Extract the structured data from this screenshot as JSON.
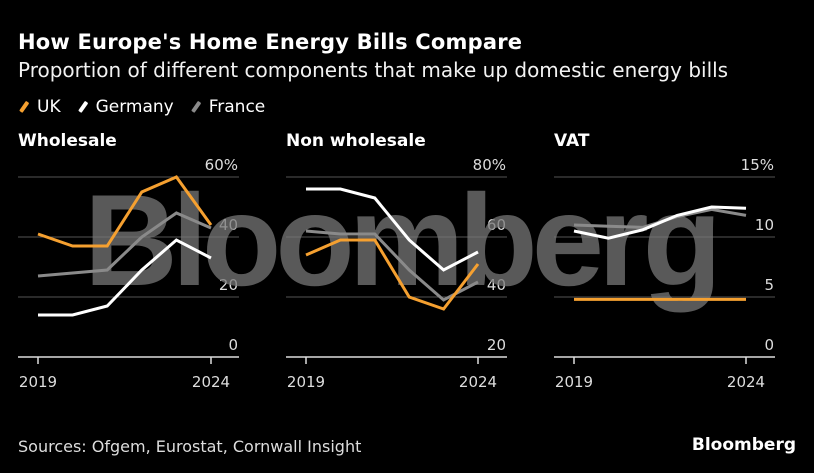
{
  "header": {
    "title": "How Europe's Home Energy Bills Compare",
    "subtitle": "Proportion of different components that make up domestic energy bills"
  },
  "legend": [
    {
      "name": "UK",
      "color": "#f5a030"
    },
    {
      "name": "Germany",
      "color": "#ffffff"
    },
    {
      "name": "France",
      "color": "#8a8a8a"
    }
  ],
  "footer": {
    "source": "Sources: Ofgem, Eurostat, Cornwall Insight",
    "brand": "Bloomberg"
  },
  "watermark": "Bloomberg",
  "chart_data": [
    {
      "type": "line",
      "title": "Wholesale",
      "x": [
        2019,
        2020,
        2021,
        2022,
        2023,
        2024
      ],
      "xtick_labels": [
        "2019",
        "2024"
      ],
      "ylim": [
        0,
        60
      ],
      "yticks": [
        0,
        20,
        40,
        60
      ],
      "ytick_labels": [
        "0",
        "20",
        "40",
        "60%"
      ],
      "grid": true,
      "series": [
        {
          "name": "UK",
          "values": [
            41,
            37,
            37,
            55,
            60,
            44
          ]
        },
        {
          "name": "Germany",
          "values": [
            14,
            14,
            17,
            29,
            39,
            33
          ]
        },
        {
          "name": "France",
          "values": [
            27,
            28,
            29,
            40,
            48,
            43
          ]
        }
      ]
    },
    {
      "type": "line",
      "title": "Non wholesale",
      "x": [
        2019,
        2020,
        2021,
        2022,
        2023,
        2024
      ],
      "xtick_labels": [
        "2019",
        "2024"
      ],
      "ylim": [
        20,
        80
      ],
      "yticks": [
        20,
        40,
        60,
        80
      ],
      "ytick_labels": [
        "20",
        "40",
        "60",
        "80%"
      ],
      "grid": true,
      "series": [
        {
          "name": "UK",
          "values": [
            54,
            59,
            59,
            40,
            36,
            51
          ]
        },
        {
          "name": "Germany",
          "values": [
            76,
            76,
            73,
            59,
            49,
            55
          ]
        },
        {
          "name": "France",
          "values": [
            62,
            61,
            61,
            49,
            39,
            45
          ]
        }
      ]
    },
    {
      "type": "line",
      "title": "VAT",
      "x": [
        2019,
        2020,
        2021,
        2022,
        2023,
        2024
      ],
      "xtick_labels": [
        "2019",
        "2024"
      ],
      "ylim": [
        0,
        15
      ],
      "yticks": [
        0,
        5,
        10,
        15
      ],
      "ytick_labels": [
        "0",
        "5",
        "10",
        "15%"
      ],
      "grid": true,
      "series": [
        {
          "name": "UK",
          "values": [
            4.8,
            4.8,
            4.8,
            4.8,
            4.8,
            4.8
          ]
        },
        {
          "name": "Germany",
          "values": [
            10.5,
            9.9,
            10.6,
            11.8,
            12.5,
            12.4
          ]
        },
        {
          "name": "France",
          "values": [
            11.0,
            10.9,
            10.8,
            11.7,
            12.3,
            11.8
          ]
        }
      ]
    }
  ]
}
